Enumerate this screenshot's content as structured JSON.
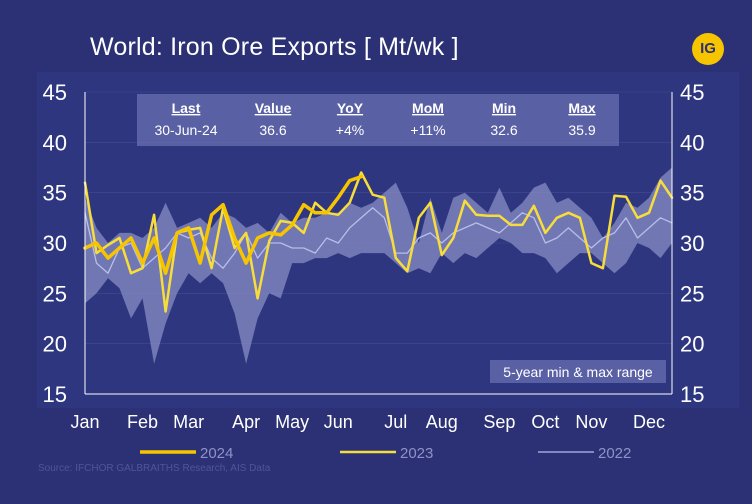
{
  "title": "World: Iron Ore Exports [ Mt/wk ]",
  "logo_text": "IG",
  "source": "Source: IFCHOR GALBRAITHS  Research, AIS Data",
  "colors": {
    "background": "#2b3174",
    "plot_bg": "#2e367f",
    "y2024": "#f7c500",
    "y2023": "#f7dd3c",
    "y2022": "#b8bdea",
    "range_fill": "#8e93c7",
    "axis": "#ffffff"
  },
  "stats_table": {
    "headers": [
      "Last",
      "Value",
      "YoY",
      "MoM",
      "Min",
      "Max"
    ],
    "values": [
      "30-Jun-24",
      "36.6",
      "+4%",
      "+11%",
      "32.6",
      "35.9"
    ]
  },
  "range_label": "5-year min & max range",
  "chart_data": {
    "type": "line",
    "title": "World: Iron Ore Exports [ Mt/wk ]",
    "xlabel": "",
    "ylabel": "Mt/wk",
    "ylim": [
      15,
      45
    ],
    "yticks": [
      15,
      20,
      25,
      30,
      35,
      40,
      45
    ],
    "xlim": [
      1,
      52
    ],
    "month_ticks": [
      {
        "label": "Jan",
        "week": 1
      },
      {
        "label": "Feb",
        "week": 6
      },
      {
        "label": "Mar",
        "week": 10
      },
      {
        "label": "Apr",
        "week": 15
      },
      {
        "label": "May",
        "week": 19
      },
      {
        "label": "Jun",
        "week": 23
      },
      {
        "label": "Jul",
        "week": 28
      },
      {
        "label": "Aug",
        "week": 32
      },
      {
        "label": "Sep",
        "week": 37
      },
      {
        "label": "Oct",
        "week": 41
      },
      {
        "label": "Nov",
        "week": 45
      },
      {
        "label": "Dec",
        "week": 50
      }
    ],
    "range_band": {
      "name": "5-year min & max range",
      "weeks": [
        1,
        2,
        3,
        4,
        5,
        6,
        7,
        8,
        9,
        10,
        11,
        12,
        13,
        14,
        15,
        16,
        17,
        18,
        19,
        20,
        21,
        22,
        23,
        24,
        25,
        26,
        27,
        28,
        29,
        30,
        31,
        32,
        33,
        34,
        35,
        36,
        37,
        38,
        39,
        40,
        41,
        42,
        43,
        44,
        45,
        46,
        47,
        48,
        49,
        50,
        51,
        52
      ],
      "min": [
        24.0,
        25.0,
        26.5,
        25.5,
        22.5,
        24.5,
        18.0,
        22.0,
        25.0,
        27.0,
        26.0,
        27.0,
        26.0,
        23.0,
        18.0,
        22.5,
        25.0,
        24.5,
        28.0,
        28.0,
        28.5,
        28.5,
        29.0,
        28.5,
        29.0,
        29.0,
        29.0,
        28.0,
        27.0,
        27.5,
        27.0,
        29.0,
        28.0,
        29.0,
        28.5,
        29.5,
        30.5,
        30.0,
        29.0,
        29.0,
        28.5,
        27.0,
        28.0,
        29.0,
        29.0,
        28.0,
        27.0,
        28.0,
        30.0,
        29.5,
        28.5,
        30.0
      ],
      "max": [
        34.5,
        31.5,
        30.0,
        31.0,
        31.0,
        30.5,
        31.5,
        34.0,
        31.5,
        32.0,
        32.5,
        31.5,
        33.0,
        32.5,
        31.5,
        32.0,
        31.0,
        33.0,
        32.0,
        32.5,
        32.5,
        33.0,
        33.0,
        34.0,
        33.5,
        34.0,
        35.0,
        36.0,
        33.5,
        30.0,
        34.5,
        31.0,
        34.5,
        35.0,
        34.0,
        33.0,
        35.5,
        33.0,
        34.0,
        35.5,
        36.0,
        34.0,
        34.5,
        33.5,
        32.5,
        30.5,
        32.0,
        34.0,
        33.5,
        34.5,
        36.5,
        37.5
      ]
    },
    "series": [
      {
        "name": "2024",
        "weeks": [
          1,
          2,
          3,
          4,
          5,
          6,
          7,
          8,
          9,
          10,
          11,
          12,
          13,
          14,
          15,
          16,
          17,
          18,
          19,
          20,
          21,
          22,
          23,
          24,
          25,
          26,
          27,
          28
        ],
        "values": [
          29.5,
          30.0,
          28.5,
          29.5,
          30.5,
          28.0,
          30.5,
          27.0,
          31.0,
          31.5,
          28.0,
          32.8,
          33.8,
          30.5,
          28.0,
          30.5,
          31.0,
          30.8,
          31.8,
          33.8,
          33.0,
          33.0,
          34.5,
          36.2,
          36.6,
          null,
          null,
          null
        ]
      },
      {
        "name": "2023",
        "weeks": [
          1,
          2,
          3,
          4,
          5,
          6,
          7,
          8,
          9,
          10,
          11,
          12,
          13,
          14,
          15,
          16,
          17,
          18,
          19,
          20,
          21,
          22,
          23,
          24,
          25,
          26,
          27,
          28,
          29,
          30,
          31,
          32,
          33,
          34,
          35,
          36,
          37,
          38,
          39,
          40,
          41,
          42,
          43,
          44,
          45,
          46,
          47,
          48,
          49,
          50,
          51,
          52
        ],
        "values": [
          36.0,
          29.0,
          29.8,
          30.5,
          27.0,
          27.5,
          32.8,
          23.2,
          31.0,
          31.3,
          31.5,
          27.5,
          33.5,
          29.5,
          31.0,
          24.5,
          30.2,
          32.2,
          32.0,
          31.0,
          34.0,
          33.0,
          32.8,
          34.0,
          37.0,
          34.8,
          34.5,
          28.5,
          27.2,
          32.5,
          34.0,
          28.8,
          30.5,
          34.2,
          32.8,
          32.7,
          32.7,
          31.8,
          31.8,
          33.7,
          31.0,
          32.5,
          33.0,
          32.5,
          28.0,
          27.5,
          34.7,
          34.6,
          32.5,
          33.0,
          36.2,
          34.5
        ]
      },
      {
        "name": "2022",
        "weeks": [
          1,
          2,
          3,
          4,
          5,
          6,
          7,
          8,
          9,
          10,
          11,
          12,
          13,
          14,
          15,
          16,
          17,
          18,
          19,
          20,
          21,
          22,
          23,
          24,
          25,
          26,
          27,
          28,
          29,
          30,
          31,
          32,
          33,
          34,
          35,
          36,
          37,
          38,
          39,
          40,
          41,
          42,
          43,
          44,
          45,
          46,
          47,
          48,
          49,
          50,
          51,
          52
        ],
        "values": [
          33.0,
          28.0,
          27.0,
          29.5,
          30.0,
          27.5,
          28.5,
          29.5,
          31.0,
          30.5,
          31.0,
          28.5,
          27.5,
          29.0,
          31.0,
          28.5,
          30.0,
          30.0,
          29.5,
          29.5,
          29.0,
          30.5,
          30.0,
          31.5,
          32.5,
          33.5,
          32.5,
          29.0,
          29.0,
          30.5,
          31.0,
          30.0,
          31.0,
          31.5,
          32.0,
          31.5,
          31.0,
          32.0,
          33.0,
          32.5,
          30.0,
          30.5,
          31.5,
          30.5,
          29.5,
          30.5,
          31.0,
          32.5,
          30.5,
          31.5,
          32.5,
          32.0
        ]
      }
    ],
    "legend": [
      "2024",
      "2023",
      "2022"
    ],
    "legend_position": "bottom"
  }
}
